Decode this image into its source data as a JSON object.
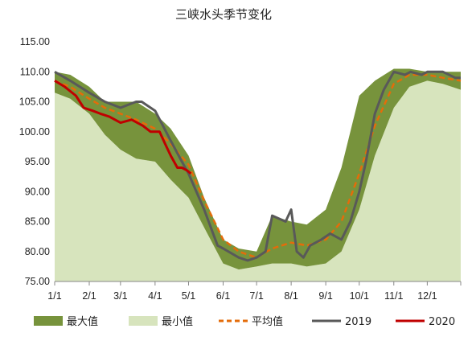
{
  "chart_data": {
    "type": "area",
    "title": "三峡水头季节变化",
    "xlabel": "",
    "ylabel": "",
    "ylim": [
      75,
      115
    ],
    "yticks": [
      "75.00",
      "80.00",
      "85.00",
      "90.00",
      "95.00",
      "100.00",
      "105.00",
      "110.00",
      "115.00"
    ],
    "xticks": [
      "1/1",
      "2/1",
      "3/1",
      "4/1",
      "5/1",
      "6/1",
      "7/1",
      "8/1",
      "9/1",
      "10/1",
      "11/1",
      "12/1"
    ],
    "grid": false,
    "legend_position": "bottom",
    "colors": {
      "max": "#77933c",
      "min": "#d7e4bd",
      "avg": "#e46c0a",
      "y2019": "#595959",
      "y2020": "#c00000"
    },
    "series": [
      {
        "name": "最大值",
        "kind": "area",
        "x": [
          1,
          15,
          32,
          46,
          60,
          74,
          91,
          105,
          121,
          135,
          152,
          166,
          182,
          196,
          213,
          227,
          244,
          258,
          274,
          288,
          305,
          319,
          335,
          349,
          365
        ],
        "values": [
          110,
          109.5,
          107.5,
          105,
          105,
          105,
          103,
          100.5,
          96,
          89,
          82,
          80.5,
          80,
          86,
          85,
          84.5,
          87,
          94,
          106,
          108.5,
          110.5,
          110.5,
          110,
          110,
          110
        ]
      },
      {
        "name": "最小值",
        "kind": "area",
        "x": [
          1,
          15,
          32,
          46,
          60,
          74,
          91,
          105,
          121,
          135,
          152,
          166,
          182,
          196,
          213,
          227,
          244,
          258,
          274,
          288,
          305,
          319,
          335,
          349,
          365
        ],
        "values": [
          106.5,
          105.5,
          103,
          99.5,
          97,
          95.5,
          95,
          92,
          89,
          84,
          78,
          77,
          77.5,
          78,
          78,
          77.5,
          78,
          80,
          87,
          96,
          104,
          107.5,
          108.5,
          108,
          107
        ]
      },
      {
        "name": "平均值",
        "kind": "line",
        "x": [
          1,
          15,
          32,
          46,
          60,
          74,
          91,
          105,
          121,
          135,
          152,
          166,
          182,
          196,
          213,
          227,
          244,
          258,
          274,
          288,
          305,
          319,
          335,
          349,
          365
        ],
        "values": [
          108.5,
          107.5,
          105.5,
          104,
          103,
          102,
          100.5,
          98,
          94.5,
          88.5,
          82,
          80,
          79,
          80.5,
          81.5,
          81,
          82,
          85,
          93,
          101,
          108,
          109.5,
          109.5,
          109,
          108.5
        ]
      },
      {
        "name": "2019",
        "kind": "line",
        "x": [
          1,
          15,
          32,
          46,
          60,
          74,
          79,
          91,
          105,
          115,
          121,
          135,
          147,
          152,
          166,
          174,
          182,
          190,
          196,
          208,
          213,
          218,
          224,
          230,
          240,
          248,
          258,
          266,
          274,
          280,
          288,
          296,
          305,
          315,
          320,
          330,
          335,
          349,
          360,
          365
        ],
        "values": [
          110,
          108.5,
          106.5,
          105,
          104,
          105,
          105,
          103.5,
          98.5,
          95,
          93,
          87,
          81,
          80.5,
          79,
          78.5,
          79,
          80,
          86,
          85,
          87,
          80,
          79,
          81,
          82,
          83,
          82,
          85,
          90,
          95,
          103,
          107,
          110,
          109.5,
          110,
          109.5,
          110,
          110,
          109,
          109
        ]
      },
      {
        "name": "2020",
        "kind": "line",
        "x": [
          1,
          10,
          20,
          27,
          35,
          42,
          50,
          60,
          70,
          80,
          87,
          95,
          100,
          105,
          111,
          115,
          120,
          123
        ],
        "values": [
          108.5,
          107.5,
          106,
          104,
          103.5,
          103,
          102.5,
          101.5,
          102,
          101,
          100,
          100,
          98,
          96,
          94,
          94,
          93.5,
          93
        ]
      }
    ]
  }
}
